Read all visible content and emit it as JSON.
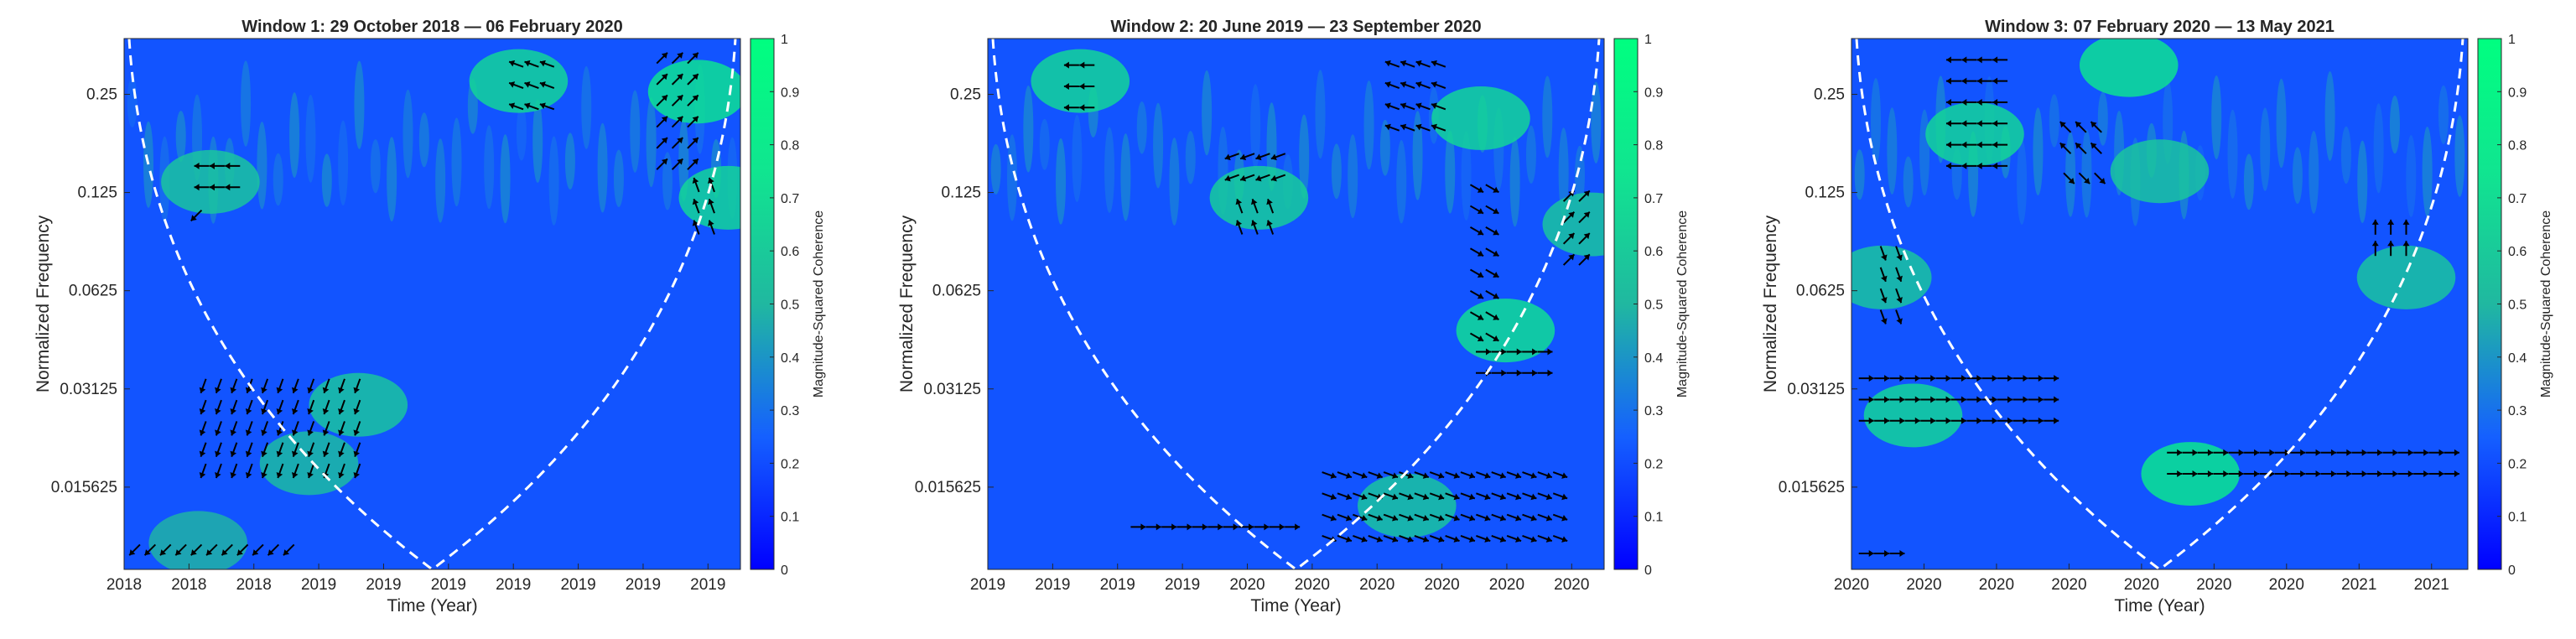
{
  "chart_data": [
    {
      "type": "heatmap",
      "title": "Window 1: 29 October 2018 — 06 February 2020",
      "xlabel": "Time (Year)",
      "ylabel": "Normalized Frequency",
      "x_tick_labels": [
        "2018",
        "2018",
        "2018",
        "2019",
        "2019",
        "2019",
        "2019",
        "2019",
        "2019",
        "2019"
      ],
      "y_tick_labels": [
        "0.25",
        "0.125",
        "0.0625",
        "0.03125",
        "0.015625"
      ],
      "colorbar": {
        "label": "Magnitude-Squared Coherence",
        "range": [
          0,
          1
        ],
        "tick_labels": [
          "0",
          "0.1",
          "0.2",
          "0.3",
          "0.4",
          "0.5",
          "0.6",
          "0.7",
          "0.8",
          "0.9",
          "1"
        ],
        "colormap": [
          "#0000ff",
          "#1560ff",
          "#20b8a0",
          "#10e590",
          "#00ff80"
        ]
      },
      "cone_of_influence": {
        "style": "dashed",
        "color": "#ffffff"
      },
      "coherence_regions": [
        {
          "x": 0.14,
          "y": 0.73,
          "level": 0.6
        },
        {
          "x": 0.38,
          "y": 0.31,
          "level": 0.6
        },
        {
          "x": 0.3,
          "y": 0.2,
          "level": 0.55
        },
        {
          "x": 0.98,
          "y": 0.7,
          "level": 0.7
        },
        {
          "x": 0.12,
          "y": 0.05,
          "level": 0.5
        },
        {
          "x": 0.64,
          "y": 0.92,
          "level": 0.7
        },
        {
          "x": 0.93,
          "y": 0.9,
          "level": 0.8
        }
      ],
      "phase_arrows": [
        {
          "x": [
            0.13,
            0.2
          ],
          "y": [
            0.76,
            0.71
          ],
          "spacing": [
            0.025,
            0.04
          ],
          "angle": 180
        },
        {
          "x": [
            0.12,
            0.14
          ],
          "y": [
            0.67,
            0.67
          ],
          "spacing": [
            0.025,
            0.04
          ],
          "angle": 225
        },
        {
          "x": [
            0.13,
            0.4
          ],
          "y": [
            0.35,
            0.18
          ],
          "spacing": [
            0.025,
            0.04
          ],
          "angle": 250
        },
        {
          "x": [
            0.02,
            0.28
          ],
          "y": [
            0.04,
            0.04
          ],
          "spacing": [
            0.025,
            0.04
          ],
          "angle": 225
        },
        {
          "x": [
            0.64,
            0.7
          ],
          "y": [
            0.95,
            0.85
          ],
          "spacing": [
            0.025,
            0.04
          ],
          "angle": 160
        },
        {
          "x": [
            0.87,
            0.93
          ],
          "y": [
            0.96,
            0.75
          ],
          "spacing": [
            0.025,
            0.04
          ],
          "angle": 45
        },
        {
          "x": [
            0.93,
            0.96
          ],
          "y": [
            0.72,
            0.62
          ],
          "spacing": [
            0.025,
            0.04
          ],
          "angle": 110
        }
      ]
    },
    {
      "type": "heatmap",
      "title": "Window 2: 20 June 2019 — 23 September 2020",
      "xlabel": "Time (Year)",
      "ylabel": "Normalized Frequency",
      "x_tick_labels": [
        "2019",
        "2019",
        "2019",
        "2019",
        "2020",
        "2020",
        "2020",
        "2020",
        "2020",
        "2020"
      ],
      "y_tick_labels": [
        "0.25",
        "0.125",
        "0.0625",
        "0.03125",
        "0.015625"
      ],
      "colorbar": {
        "label": "Magnitude-Squared Coherence",
        "range": [
          0,
          1
        ],
        "tick_labels": [
          "0",
          "0.1",
          "0.2",
          "0.3",
          "0.4",
          "0.5",
          "0.6",
          "0.7",
          "0.8",
          "0.9",
          "1"
        ],
        "colormap": [
          "#0000ff",
          "#1560ff",
          "#20b8a0",
          "#10e590",
          "#00ff80"
        ]
      },
      "cone_of_influence": {
        "style": "dashed",
        "color": "#ffffff"
      },
      "coherence_regions": [
        {
          "x": 0.44,
          "y": 0.7,
          "level": 0.65
        },
        {
          "x": 0.84,
          "y": 0.45,
          "level": 0.75
        },
        {
          "x": 0.68,
          "y": 0.12,
          "level": 0.6
        },
        {
          "x": 0.8,
          "y": 0.85,
          "level": 0.7
        },
        {
          "x": 0.15,
          "y": 0.92,
          "level": 0.7
        },
        {
          "x": 0.98,
          "y": 0.65,
          "level": 0.6
        }
      ],
      "phase_arrows": [
        {
          "x": [
            0.14,
            0.18
          ],
          "y": [
            0.95,
            0.85
          ],
          "spacing": [
            0.025,
            0.04
          ],
          "angle": 180
        },
        {
          "x": [
            0.4,
            0.48
          ],
          "y": [
            0.78,
            0.72
          ],
          "spacing": [
            0.025,
            0.04
          ],
          "angle": 200
        },
        {
          "x": [
            0.41,
            0.46
          ],
          "y": [
            0.68,
            0.62
          ],
          "spacing": [
            0.025,
            0.04
          ],
          "angle": 110
        },
        {
          "x": [
            0.66,
            0.74
          ],
          "y": [
            0.95,
            0.82
          ],
          "spacing": [
            0.025,
            0.04
          ],
          "angle": 160
        },
        {
          "x": [
            0.79,
            0.83
          ],
          "y": [
            0.72,
            0.42
          ],
          "spacing": [
            0.025,
            0.04
          ],
          "angle": 330
        },
        {
          "x": [
            0.8,
            0.92
          ],
          "y": [
            0.41,
            0.35
          ],
          "spacing": [
            0.025,
            0.04
          ],
          "angle": 0
        },
        {
          "x": [
            0.55,
            0.94
          ],
          "y": [
            0.18,
            0.03
          ],
          "spacing": [
            0.025,
            0.04
          ],
          "angle": 340
        },
        {
          "x": [
            0.24,
            0.5
          ],
          "y": [
            0.08,
            0.08
          ],
          "spacing": [
            0.025,
            0.04
          ],
          "angle": 0
        },
        {
          "x": [
            0.94,
            0.98
          ],
          "y": [
            0.7,
            0.58
          ],
          "spacing": [
            0.025,
            0.04
          ],
          "angle": 45
        }
      ]
    },
    {
      "type": "heatmap",
      "title": "Window 3: 07 February 2020 — 13 May 2021",
      "xlabel": "Time (Year)",
      "ylabel": "Normalized Frequency",
      "x_tick_labels": [
        "2020",
        "2020",
        "2020",
        "2020",
        "2020",
        "2020",
        "2020",
        "2021",
        "2021"
      ],
      "y_tick_labels": [
        "0.25",
        "0.125",
        "0.0625",
        "0.03125",
        "0.015625"
      ],
      "colorbar": {
        "label": "Magnitude-Squared Coherence",
        "range": [
          0,
          1
        ],
        "tick_labels": [
          "0",
          "0.1",
          "0.2",
          "0.3",
          "0.4",
          "0.5",
          "0.6",
          "0.7",
          "0.8",
          "0.9",
          "1"
        ],
        "colormap": [
          "#0000ff",
          "#1560ff",
          "#20b8a0",
          "#10e590",
          "#00ff80"
        ]
      },
      "cone_of_influence": {
        "style": "dashed",
        "color": "#ffffff"
      },
      "coherence_regions": [
        {
          "x": 0.1,
          "y": 0.29,
          "level": 0.7
        },
        {
          "x": 0.55,
          "y": 0.18,
          "level": 0.85
        },
        {
          "x": 0.05,
          "y": 0.55,
          "level": 0.6
        },
        {
          "x": 0.5,
          "y": 0.75,
          "level": 0.6
        },
        {
          "x": 0.2,
          "y": 0.82,
          "level": 0.7
        },
        {
          "x": 0.9,
          "y": 0.55,
          "level": 0.6
        },
        {
          "x": 0.45,
          "y": 0.95,
          "level": 0.8
        }
      ],
      "phase_arrows": [
        {
          "x": [
            0.17,
            0.26
          ],
          "y": [
            0.96,
            0.75
          ],
          "spacing": [
            0.025,
            0.04
          ],
          "angle": 180
        },
        {
          "x": [
            0.05,
            0.08
          ],
          "y": [
            0.6,
            0.45
          ],
          "spacing": [
            0.025,
            0.04
          ],
          "angle": 290
        },
        {
          "x": [
            0.35,
            0.4
          ],
          "y": [
            0.83,
            0.78
          ],
          "spacing": [
            0.025,
            0.04
          ],
          "angle": 135
        },
        {
          "x": [
            0.35,
            0.41
          ],
          "y": [
            0.74,
            0.72
          ],
          "spacing": [
            0.025,
            0.04
          ],
          "angle": 315
        },
        {
          "x": [
            0.02,
            0.32
          ],
          "y": [
            0.36,
            0.26
          ],
          "spacing": [
            0.025,
            0.04
          ],
          "angle": 0
        },
        {
          "x": [
            0.52,
            0.98
          ],
          "y": [
            0.22,
            0.17
          ],
          "spacing": [
            0.025,
            0.04
          ],
          "angle": 0
        },
        {
          "x": [
            0.85,
            0.9
          ],
          "y": [
            0.64,
            0.58
          ],
          "spacing": [
            0.025,
            0.04
          ],
          "angle": 90
        },
        {
          "x": [
            0.02,
            0.08
          ],
          "y": [
            0.03,
            0.03
          ],
          "spacing": [
            0.025,
            0.04
          ],
          "angle": 0
        }
      ]
    }
  ]
}
